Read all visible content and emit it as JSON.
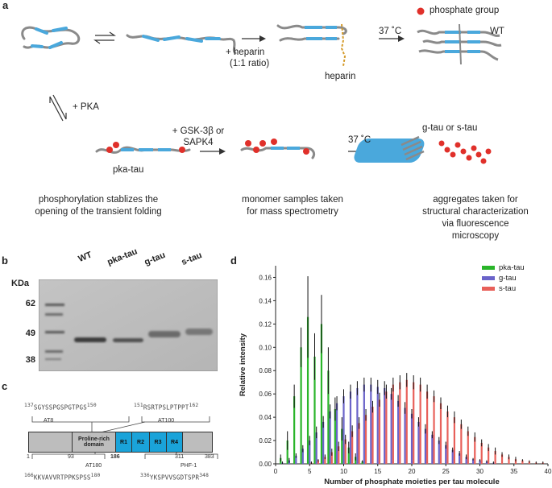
{
  "panel_a": {
    "label": "a",
    "legend": "phosphate group",
    "heparin_step": "+ heparin",
    "heparin_ratio": "(1:1 ratio)",
    "heparin_label": "heparin",
    "temp_1": "37 ˚C",
    "wt_label": "WT",
    "pka_step": "+ PKA",
    "kinase_step_line1": "+ GSK-3β or",
    "kinase_step_line2": "SAPK4",
    "pka_tau_label": "pka-tau",
    "temp_2": "37 ˚C",
    "agg_label": "g-tau or s-tau",
    "caption_1_line1": "phosphorylation stablizes the",
    "caption_1_line2": "opening of the transient folding",
    "caption_2_line1": "monomer samples taken",
    "caption_2_line2": "for mass spectrometry",
    "caption_3_line1": "aggregates taken for",
    "caption_3_line2": "structural characterization",
    "caption_3_line3": "via fluorescence",
    "caption_3_line4": "microscopy",
    "colors": {
      "phosphate": "#e0302a",
      "repeat": "#4aa8dc",
      "chain": "#8a8a8a"
    }
  },
  "panel_b": {
    "label": "b",
    "unit": "KDa",
    "lanes": [
      "WT",
      "pka-tau",
      "g-tau",
      "s-tau"
    ],
    "markers": [
      "62",
      "49",
      "38"
    ]
  },
  "panel_c": {
    "label": "c",
    "seq_top_left_start": "137",
    "seq_top_left": "SGYSSPGSPGTPGS",
    "seq_top_left_end": "150",
    "seq_top_right_start": "151",
    "seq_top_right": "RSRTPSLPTPPT",
    "seq_top_right_end": "162",
    "ab_at8": "AT8",
    "ab_at100": "AT100",
    "domain_proline": "Proline-rich domain",
    "repeats": [
      "R1",
      "R2",
      "R3",
      "R4"
    ],
    "residues": [
      "1",
      "93",
      "186",
      "311",
      "383"
    ],
    "ab_at180": "AT180",
    "ab_phf1": "PHF-1",
    "seq_bot_left_start": "166",
    "seq_bot_left": "KKVAVVRTPPKSPSS",
    "seq_bot_left_end": "180",
    "seq_bot_right_start": "336",
    "seq_bot_right": "YKSPVVSGDTSPR",
    "seq_bot_right_end": "348",
    "colors": {
      "domain_bg": "#bdbdbd",
      "repeat": "#1aa3d9"
    }
  },
  "panel_d": {
    "label": "d",
    "colors": {
      "pka-tau": "#2ab52a",
      "g-tau": "#6a63c9",
      "s-tau": "#e8605a",
      "error": "#111111"
    }
  },
  "chart_data": {
    "type": "bar",
    "title": "",
    "xlabel": "Number of phosphate moieties per tau molecule",
    "ylabel": "Relative intensity",
    "xlim": [
      0,
      40
    ],
    "ylim": [
      0,
      0.17
    ],
    "xticks": [
      "0",
      "5",
      "10",
      "15",
      "20",
      "25",
      "30",
      "35",
      "40"
    ],
    "yticks": [
      "0.00",
      "0.02",
      "0.04",
      "0.06",
      "0.08",
      "0.10",
      "0.12",
      "0.14",
      "0.16"
    ],
    "legend_position": "top-right",
    "series": [
      {
        "name": "pka-tau",
        "x": [
          1,
          2,
          3,
          4,
          5,
          6,
          7,
          8,
          9,
          10,
          11,
          12,
          13
        ],
        "values": [
          0.005,
          0.02,
          0.058,
          0.1,
          0.126,
          0.092,
          0.12,
          0.08,
          0.047,
          0.03,
          0.014,
          0.006,
          0.002
        ],
        "errors": [
          0.003,
          0.008,
          0.01,
          0.017,
          0.035,
          0.02,
          0.025,
          0.02,
          0.01,
          0.01,
          0.005,
          0.003,
          0.001
        ]
      },
      {
        "name": "g-tau",
        "x": [
          1,
          2,
          3,
          4,
          5,
          6,
          7,
          8,
          9,
          10,
          11,
          12,
          13,
          14,
          15,
          16,
          17,
          18,
          19,
          20,
          21,
          22,
          23,
          24,
          25,
          26,
          27,
          28,
          29,
          30,
          31,
          32
        ],
        "values": [
          0.001,
          0.003,
          0.007,
          0.013,
          0.02,
          0.027,
          0.036,
          0.045,
          0.052,
          0.058,
          0.062,
          0.065,
          0.068,
          0.068,
          0.066,
          0.065,
          0.06,
          0.054,
          0.048,
          0.043,
          0.036,
          0.03,
          0.025,
          0.02,
          0.016,
          0.012,
          0.009,
          0.006,
          0.004,
          0.003,
          0.002,
          0.001
        ],
        "errors": [
          0.001,
          0.002,
          0.002,
          0.003,
          0.004,
          0.005,
          0.005,
          0.006,
          0.006,
          0.006,
          0.006,
          0.006,
          0.006,
          0.006,
          0.006,
          0.006,
          0.005,
          0.005,
          0.005,
          0.004,
          0.004,
          0.004,
          0.003,
          0.003,
          0.003,
          0.002,
          0.002,
          0.002,
          0.001,
          0.001,
          0.001,
          0.001
        ]
      },
      {
        "name": "s-tau",
        "x": [
          5,
          6,
          7,
          8,
          9,
          10,
          11,
          12,
          13,
          14,
          15,
          16,
          17,
          18,
          19,
          20,
          21,
          22,
          23,
          24,
          25,
          26,
          27,
          28,
          29,
          30,
          31,
          32,
          33,
          34,
          35,
          36,
          37,
          38,
          39
        ],
        "values": [
          0.001,
          0.003,
          0.006,
          0.01,
          0.015,
          0.021,
          0.028,
          0.035,
          0.042,
          0.049,
          0.055,
          0.062,
          0.068,
          0.07,
          0.072,
          0.07,
          0.068,
          0.062,
          0.058,
          0.052,
          0.045,
          0.04,
          0.034,
          0.028,
          0.023,
          0.018,
          0.014,
          0.011,
          0.008,
          0.006,
          0.004,
          0.003,
          0.002,
          0.001,
          0.001
        ],
        "errors": [
          0.001,
          0.001,
          0.002,
          0.003,
          0.004,
          0.004,
          0.005,
          0.005,
          0.005,
          0.005,
          0.006,
          0.006,
          0.006,
          0.006,
          0.006,
          0.006,
          0.006,
          0.006,
          0.005,
          0.005,
          0.005,
          0.005,
          0.004,
          0.004,
          0.004,
          0.003,
          0.003,
          0.003,
          0.002,
          0.002,
          0.002,
          0.001,
          0.001,
          0.001,
          0.001
        ]
      }
    ]
  }
}
